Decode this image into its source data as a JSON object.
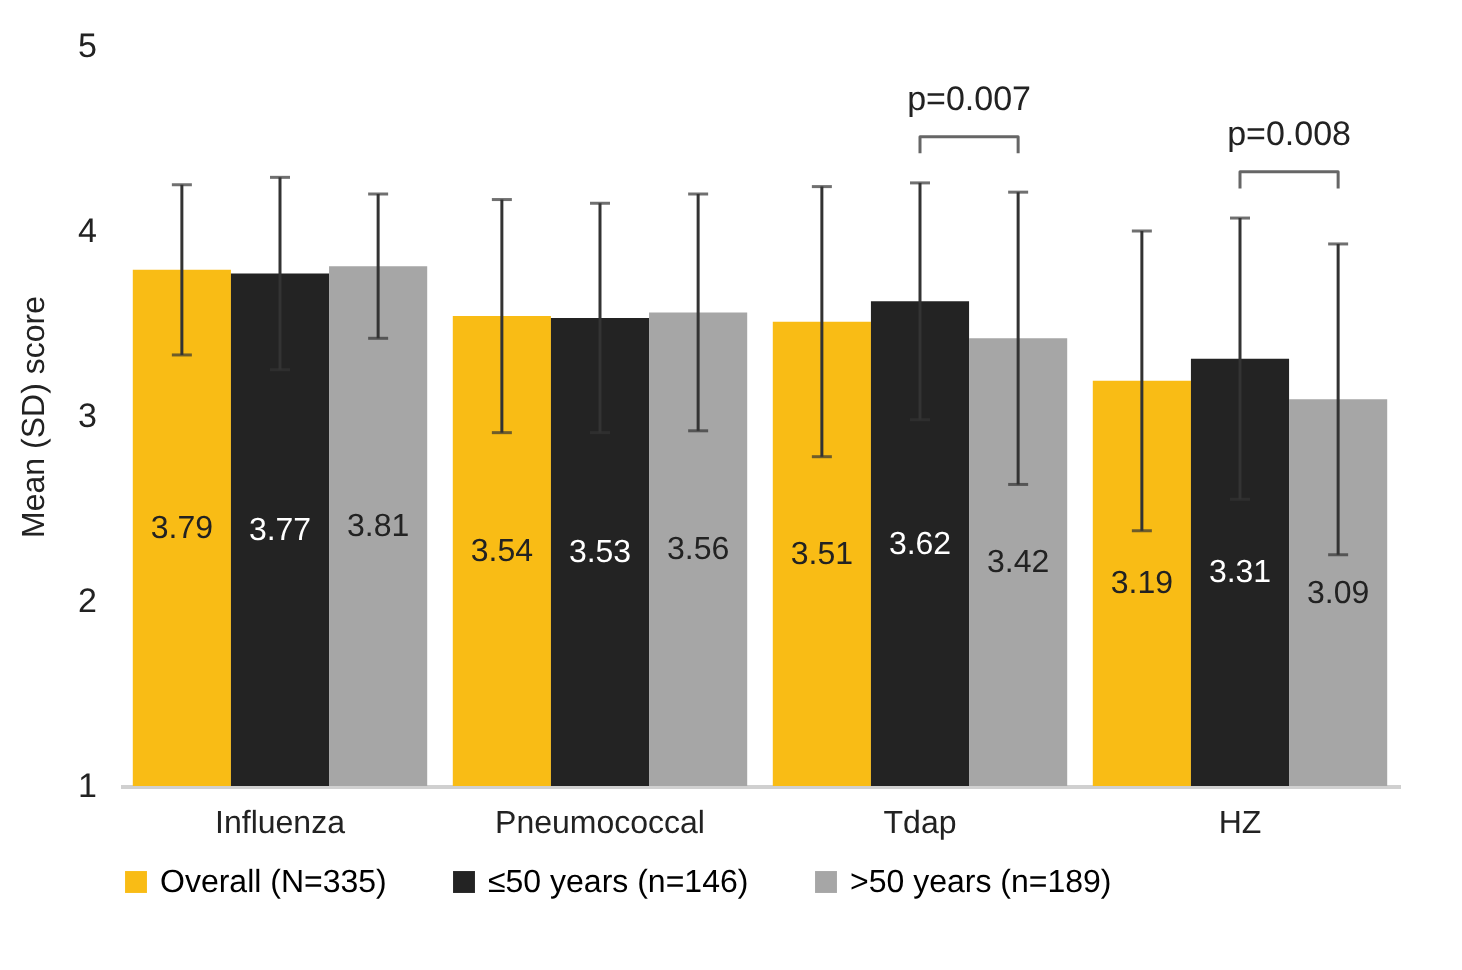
{
  "chart_data": {
    "type": "bar",
    "ylabel": "Mean (SD) score",
    "categories": [
      "Influenza",
      "Pneumococcal",
      "Tdap",
      "HZ"
    ],
    "series": [
      {
        "name": "Overall (N=335)",
        "color": "#f9bc15",
        "values": [
          3.79,
          3.54,
          3.51,
          3.19
        ],
        "errors": [
          0.46,
          0.63,
          0.73,
          0.81
        ]
      },
      {
        "name": "≤50 years (n=146)",
        "color": "#232323",
        "values": [
          3.77,
          3.53,
          3.62,
          3.31
        ],
        "errors": [
          0.52,
          0.62,
          0.64,
          0.76
        ]
      },
      {
        "name": ">50 years (n=189)",
        "color": "#a6a6a6",
        "values": [
          3.81,
          3.56,
          3.42,
          3.09
        ],
        "errors": [
          0.39,
          0.64,
          0.79,
          0.84
        ]
      }
    ],
    "ylim": [
      1,
      5
    ],
    "yticks": [
      1,
      2,
      3,
      4,
      5
    ],
    "grid": false,
    "legend": "bottom",
    "data_labels": true,
    "annotations": [
      "p=0.007",
      "p=0.008"
    ]
  }
}
